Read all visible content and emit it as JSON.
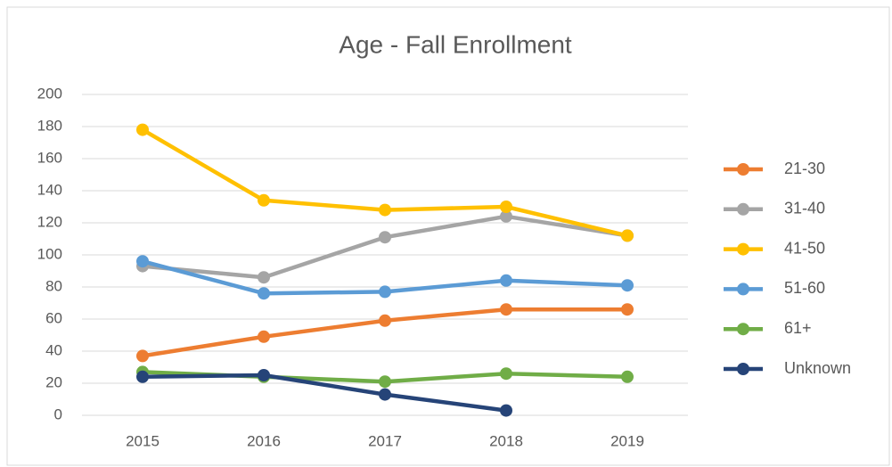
{
  "chart_data": {
    "type": "line",
    "title": "Age - Fall Enrollment",
    "categories": [
      "2015",
      "2016",
      "2017",
      "2018",
      "2019"
    ],
    "series": [
      {
        "name": "21-30",
        "color": "#ED7D31",
        "values": [
          37,
          49,
          59,
          66,
          66
        ]
      },
      {
        "name": "31-40",
        "color": "#A5A5A5",
        "values": [
          93,
          86,
          111,
          124,
          112
        ]
      },
      {
        "name": "41-50",
        "color": "#FFC000",
        "values": [
          178,
          134,
          128,
          130,
          112
        ]
      },
      {
        "name": "51-60",
        "color": "#5B9BD5",
        "values": [
          96,
          76,
          77,
          84,
          81
        ]
      },
      {
        "name": "61+",
        "color": "#70AD47",
        "values": [
          27,
          24,
          21,
          26,
          24
        ]
      },
      {
        "name": "Unknown",
        "color": "#264478",
        "values": [
          24,
          25,
          13,
          3,
          null
        ]
      }
    ],
    "ylim": [
      0,
      200
    ],
    "yticks": [
      0,
      20,
      40,
      60,
      80,
      100,
      120,
      140,
      160,
      180,
      200
    ],
    "grid": true,
    "legend": "right"
  }
}
